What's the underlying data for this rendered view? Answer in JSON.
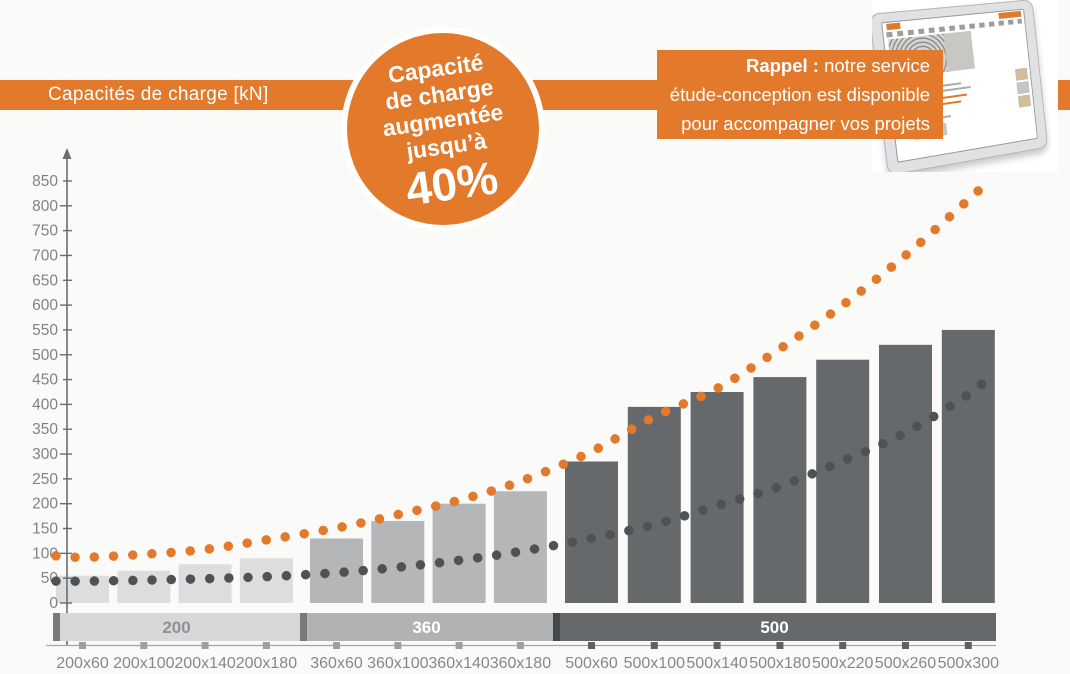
{
  "theme": {
    "accent_orange": "#e2792b",
    "background": "#fafaf8",
    "dark_gray": "#66696c"
  },
  "banner": {
    "title": "Capacités de charge [kN]"
  },
  "badge": {
    "lines": [
      "Capacité",
      "de charge",
      "augmentée",
      "jusqu’à"
    ],
    "value": "40%"
  },
  "reminder": {
    "l1_bold": "Rappel :",
    "l1_rest": " notre service",
    "l2": "étude-conception est disponible",
    "l3": "pour accompagner vos projets"
  },
  "chart_data": {
    "type": "bar",
    "title": "Capacités de charge [kN]",
    "ylim": [
      0,
      850
    ],
    "ytick_step": 50,
    "grid": false,
    "legend": "none",
    "categories": [
      "200x60",
      "200x100",
      "200x140",
      "200x180",
      "360x60",
      "360x100",
      "360x140",
      "360x180",
      "500x60",
      "500x100",
      "500x140",
      "500x180",
      "500x220",
      "500x260",
      "500x300"
    ],
    "bar_values": [
      55,
      65,
      78,
      90,
      130,
      165,
      200,
      225,
      285,
      395,
      425,
      455,
      490,
      520,
      550
    ],
    "groups": [
      {
        "label": "200",
        "count": 4,
        "bar_color": "#dcddde",
        "band_color": "#d7d8da",
        "band_label_color": "#8f9295",
        "divider_color": "#77797c",
        "tick_color": "#9da0a2"
      },
      {
        "label": "360",
        "count": 4,
        "bar_color": "#b4b6b8",
        "band_color": "#b0b2b4",
        "band_label_color": "#ffffff",
        "divider_color": "#77797c",
        "tick_color": "#9da0a2"
      },
      {
        "label": "500",
        "count": 7,
        "bar_color": "#66696c",
        "band_color": "#66696c",
        "band_label_color": "#ffffff",
        "divider_color": "#43464a",
        "tick_color": "#5e6164"
      }
    ],
    "curves": [
      {
        "name": "increased-capacity-dotted",
        "color": "#e2792b",
        "start_value": 95,
        "values": [
          92,
          98,
          108,
          127,
          151,
          178,
          207,
          245,
          305,
          375,
          432,
          512,
          600,
          700,
          812
        ],
        "end_value": 852
      },
      {
        "name": "standard-capacity-dotted",
        "color": "#4f5254",
        "start_value": 44,
        "values": [
          44,
          46,
          49,
          53,
          61,
          72,
          86,
          104,
          130,
          158,
          196,
          235,
          286,
          343,
          420
        ],
        "end_value": 457
      }
    ],
    "axis_color": "#6a6d70",
    "label_color": "#85888b",
    "ytick_label_color": "#7f8386"
  }
}
